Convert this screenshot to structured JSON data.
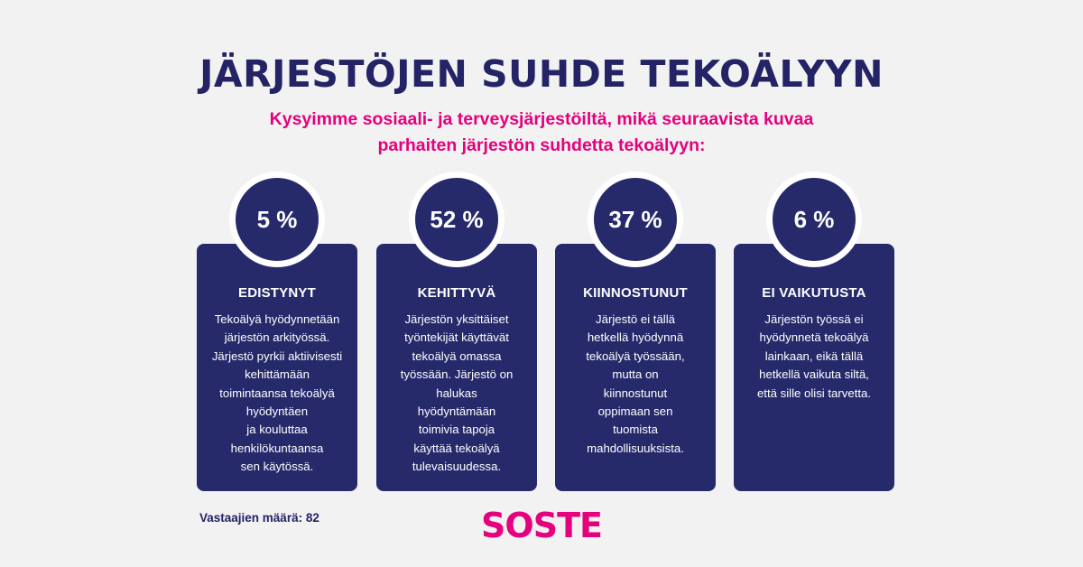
{
  "title": "JÄRJESTÖJEN SUHDE TEKOÄLYYN",
  "subtitle": "Kysyimme sosiaali- ja terveysjärjestöiltä, mikä seuraavista kuvaa\nparhaiten järjestön suhdetta tekoälyyn:",
  "cards": [
    {
      "percent": "5 %",
      "title": "EDISTYNYT",
      "description": "Tekoälyä hyödynnetään\njärjestön arkityössä.\nJärjestö pyrkii aktiivisesti\nkehittämään\ntoimintaansa tekoälyä\nhyödyntäen\nja kouluttaa\nhenkilökuntaansa\nsen käytössä."
    },
    {
      "percent": "52 %",
      "title": "KEHITTYVÄ",
      "description": "Järjestön yksittäiset\ntyöntekijät käyttävät\ntekoälyä omassa\ntyössään. Järjestö on\nhalukas\nhyödyntämään\ntoimivia tapoja\nkäyttää tekoälyä\ntulevaisuudessa."
    },
    {
      "percent": "37 %",
      "title": "KIINNOSTUNUT",
      "description": "Järjestö ei tällä\nhetkellä hyödynnä\ntekoälyä työssään,\nmutta on\nkiinnostunut\noppimaan sen\ntuomista\nmahdollisuuksista."
    },
    {
      "percent": "6 %",
      "title": "EI VAIKUTUSTA",
      "description": "Järjestön työssä ei\nhyödynnetä tekoälyä\nlainkaan, eikä tällä\nhetkellä vaikuta siltä,\nettä sille olisi tarvetta."
    }
  ],
  "footnote": "Vastaajien määrä: 82",
  "logo": "SOSTE",
  "colors": {
    "navy": "#262a6b",
    "magenta": "#e5007d",
    "background": "#f2f2f2"
  }
}
